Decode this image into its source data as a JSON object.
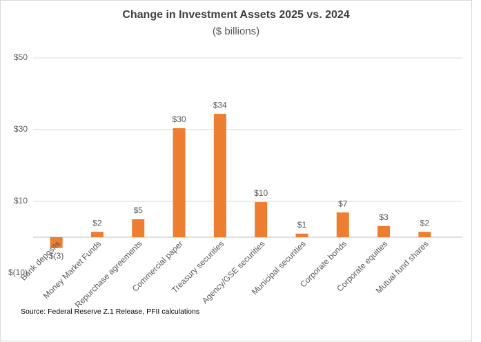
{
  "chart_data": {
    "type": "bar",
    "title": "Change in Investment Assets 2025 vs. 2024",
    "subtitle": "($ billions)",
    "categories": [
      "Bank deposits",
      "Money Market Funds",
      "Repurchase agreements",
      "Commercial paper",
      "Treasury securities",
      "Agency/GSE securities",
      "Municipal securities",
      "Corporate bonds",
      "Corporate equities",
      "Mutual fund shares"
    ],
    "values": [
      -3,
      1.5,
      5,
      30.4,
      34.4,
      9.8,
      1,
      6.9,
      3.1,
      1.5
    ],
    "value_labels": [
      "$(3)",
      "$2",
      "$5",
      "$30",
      "$34",
      "$10",
      "$1",
      "$7",
      "$3",
      "$2"
    ],
    "color": "#ed7d31",
    "ylim": [
      -10,
      50
    ],
    "yticks": [
      {
        "value": -10,
        "label": "$(10)"
      },
      {
        "value": 10,
        "label": "$10"
      },
      {
        "value": 30,
        "label": "$30"
      },
      {
        "value": 50,
        "label": "$50"
      }
    ],
    "grid": true,
    "source": "Source: Federal Reserve Z.1 Release, PFII calculations"
  }
}
